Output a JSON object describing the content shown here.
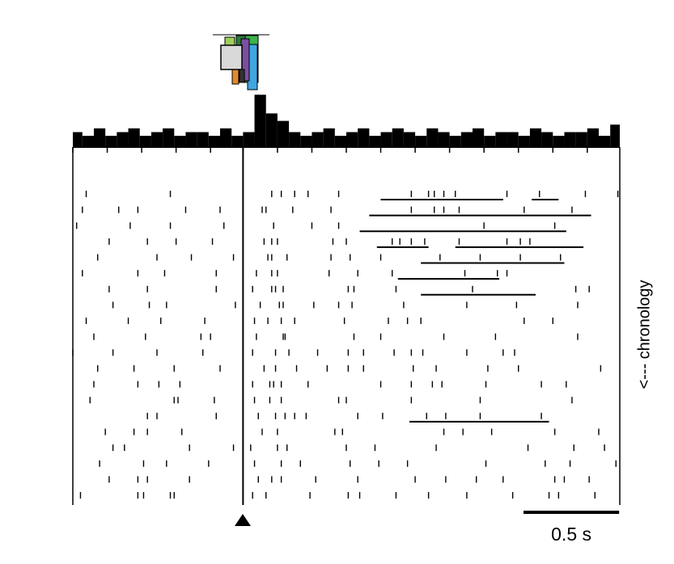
{
  "chart_data": {
    "type": "raster",
    "xlim": [
      -0.89,
      1.97
    ],
    "xticks": [
      -0.89,
      -0.71,
      -0.53,
      -0.35,
      -0.17,
      0,
      0.18,
      0.36,
      0.54,
      0.72,
      0.9,
      1.08,
      1.26,
      1.44,
      1.62,
      1.8
    ],
    "event": 0,
    "histogram": {
      "bins": [
        -0.9,
        -0.84,
        -0.78,
        -0.72,
        -0.66,
        -0.6,
        -0.54,
        -0.48,
        -0.42,
        -0.36,
        -0.3,
        -0.24,
        -0.18,
        -0.12,
        -0.06,
        0,
        0.06,
        0.12,
        0.18,
        0.24,
        0.3,
        0.36,
        0.42,
        0.48,
        0.54,
        0.6,
        0.66,
        0.72,
        0.78,
        0.84,
        0.9,
        0.96,
        1.02,
        1.08,
        1.14,
        1.2,
        1.26,
        1.32,
        1.38,
        1.44,
        1.5,
        1.56,
        1.62,
        1.68,
        1.74,
        1.8,
        1.86,
        1.92,
        1.98
      ],
      "counts": [
        4,
        3,
        5,
        3,
        4,
        5,
        3,
        4,
        5,
        3,
        4,
        4,
        3,
        5,
        3,
        4,
        14,
        9,
        7,
        4,
        3,
        4,
        5,
        3,
        4,
        5,
        3,
        4,
        5,
        4,
        3,
        5,
        4,
        3,
        4,
        5,
        3,
        4,
        4,
        3,
        5,
        4,
        3,
        4,
        4,
        5,
        3,
        6
      ],
      "ylim": [
        0,
        16
      ]
    },
    "trials": [
      [
        -0.82,
        -0.38,
        0.15,
        0.2,
        0.27,
        0.34,
        0.5,
        0.88,
        0.97,
        1.0,
        1.05,
        1.11,
        1.38,
        1.55,
        1.79,
        1.96
      ],
      [
        -0.84,
        -0.65,
        -0.55,
        -0.3,
        -0.12,
        0.1,
        0.12,
        0.26,
        0.46,
        0.88,
        1.0,
        1.05,
        1.13,
        1.47,
        1.72
      ],
      [
        -0.87,
        -0.59,
        -0.38,
        -0.1,
        0.16,
        0.36,
        0.5,
        1.26,
        1.63
      ],
      [
        -0.7,
        -0.5,
        -0.35,
        -0.16,
        0.11,
        0.15,
        0.18,
        0.47,
        0.54,
        0.78,
        0.82,
        0.88,
        0.95,
        1.13,
        1.38,
        1.45,
        1.5
      ],
      [
        -0.76,
        -0.45,
        -0.27,
        -0.05,
        0.13,
        0.15,
        0.23,
        0.46,
        0.56,
        0.72,
        1.03,
        1.24,
        1.45,
        1.66
      ],
      [
        -0.84,
        -0.55,
        -0.41,
        -0.14,
        0.07,
        0.15,
        0.18,
        0.45,
        0.6,
        0.78,
        1.16,
        1.33,
        1.38
      ],
      [
        -0.7,
        -0.5,
        -0.14,
        0.05,
        0.15,
        0.17,
        0.21,
        0.55,
        0.58,
        0.8,
        1.2,
        1.74,
        1.81
      ],
      [
        -0.68,
        -0.49,
        -0.4,
        -0.04,
        0.09,
        0.19,
        0.21,
        0.37,
        0.5,
        0.57,
        0.84,
        1.17,
        1.43,
        1.75
      ],
      [
        -0.82,
        -0.6,
        -0.43,
        -0.2,
        0.06,
        0.13,
        0.2,
        0.27,
        0.53,
        0.76,
        0.86,
        0.93,
        1.47,
        1.62
      ],
      [
        -0.78,
        -0.51,
        -0.22,
        -0.17,
        0.07,
        0.21,
        0.22,
        0.58,
        0.72,
        1.05,
        1.32,
        1.75
      ],
      [
        -0.89,
        -0.68,
        -0.45,
        -0.21,
        0.05,
        0.17,
        0.24,
        0.39,
        0.55,
        0.63,
        0.79,
        0.88,
        0.94,
        1.17,
        1.36,
        1.42
      ],
      [
        -0.76,
        -0.57,
        -0.36,
        -0.12,
        0.11,
        0.17,
        0.28,
        0.44,
        0.55,
        0.63,
        0.89,
        1.01,
        1.28,
        1.44,
        1.87
      ],
      [
        -0.78,
        -0.55,
        -0.44,
        -0.33,
        0.05,
        0.14,
        0.16,
        0.2,
        0.34,
        0.72,
        0.88,
        0.99,
        1.04,
        1.27,
        1.56,
        1.69
      ],
      [
        -0.8,
        -0.36,
        -0.34,
        -0.15,
        0.06,
        0.14,
        0.2,
        0.5,
        0.54,
        0.88,
        1.24,
        1.72
      ],
      [
        -0.5,
        -0.45,
        -0.14,
        0.08,
        0.17,
        0.22,
        0.27,
        0.33,
        0.6,
        0.73,
        0.96,
        1.06,
        1.24,
        1.56
      ],
      [
        -0.72,
        -0.57,
        -0.5,
        -0.32,
        0.1,
        0.18,
        0.48,
        0.52,
        1.05,
        1.15,
        1.3,
        1.63,
        1.86
      ],
      [
        -0.68,
        -0.62,
        -0.28,
        -0.05,
        0.04,
        0.18,
        0.23,
        0.54,
        0.69,
        1.01,
        1.49,
        1.73,
        1.89
      ],
      [
        -0.75,
        -0.52,
        -0.4,
        -0.18,
        0.06,
        0.2,
        0.3,
        0.56,
        0.71,
        0.86,
        1.27,
        1.58,
        1.71,
        1.95
      ],
      [
        -0.7,
        -0.55,
        -0.5,
        -0.28,
        0.08,
        0.15,
        0.2,
        0.38,
        0.6,
        0.9,
        1.06,
        1.22,
        1.36,
        1.63,
        1.68,
        1.81
      ],
      [
        -0.85,
        -0.55,
        -0.52,
        -0.38,
        -0.36,
        0.05,
        0.12,
        0.35,
        0.55,
        0.61,
        0.8,
        0.97,
        1.17,
        1.41,
        1.6,
        1.65,
        1.84
      ]
    ],
    "epochs": [
      {
        "trial": 0,
        "start": 0.72,
        "end": 1.36
      },
      {
        "trial": 0,
        "start": 1.51,
        "end": 1.65
      },
      {
        "trial": 1,
        "start": 0.66,
        "end": 1.82
      },
      {
        "trial": 2,
        "start": 0.61,
        "end": 1.69
      },
      {
        "trial": 3,
        "start": 0.7,
        "end": 0.97
      },
      {
        "trial": 3,
        "start": 1.11,
        "end": 1.78
      },
      {
        "trial": 4,
        "start": 0.93,
        "end": 1.68
      },
      {
        "trial": 5,
        "start": 0.81,
        "end": 1.34
      },
      {
        "trial": 6,
        "start": 0.93,
        "end": 1.53
      },
      {
        "trial": 14,
        "start": 0.87,
        "end": 1.6
      }
    ],
    "scale_bar": {
      "value": 0.5,
      "label": "0.5 s"
    },
    "side_label": "<--- chronology"
  }
}
